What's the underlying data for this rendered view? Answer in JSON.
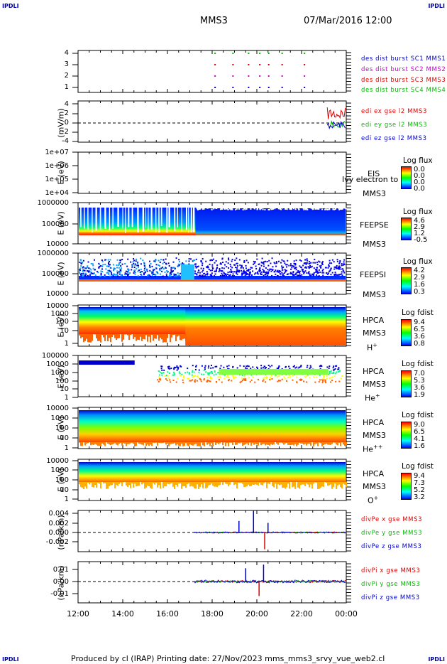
{
  "corners": {
    "tl": "IPDLI",
    "tr": "IPDLI",
    "bl": "IPDLI",
    "br": "IPDLI"
  },
  "header": {
    "mission": "MMS3",
    "datetime": "07/Mar/2016 12:00"
  },
  "footer": {
    "text": "Produced by cl (IRAP)   Printing date: 27/Nov/2023   mms_mms3_srvy_vue_web2.cl"
  },
  "colors": {
    "mms1": "#0000cc",
    "mms2": "#cc00cc",
    "mms3": "#dd0000",
    "mms4": "#00bb00",
    "x": "#dd0000",
    "y": "#00bb00",
    "z": "#0000cc"
  },
  "chart_data": [
    {
      "type": "scatter",
      "panel": "burst",
      "ylim": [
        0.5,
        4.5
      ],
      "yticks": [
        "4",
        "3",
        "2",
        "1"
      ],
      "legend": [
        "des dist burst SC1 MMS1",
        "des dist burst SC2 MMS2",
        "des dist burst SC3 MMS3",
        "des dist burst SC4 MMS4"
      ],
      "x_hours": [
        18.1,
        18.9,
        19.6,
        20.1,
        20.5,
        21.1,
        22.1
      ],
      "series": [
        {
          "name": "des dist burst SC4 MMS4",
          "y": 4
        },
        {
          "name": "des dist burst SC3 MMS3",
          "y": 3
        },
        {
          "name": "des dist burst SC2 MMS2",
          "y": 2
        },
        {
          "name": "des dist burst SC1 MMS1",
          "y": 1
        }
      ]
    },
    {
      "type": "line",
      "panel": "edi",
      "ylabel": "(mV/m)",
      "ylim": [
        -4,
        4
      ],
      "yticks": [
        "4",
        "2",
        "0",
        "-2",
        "-4"
      ],
      "legend": [
        "edi ex gse l2 MMS3",
        "edi ey gse l2 MMS3",
        "edi ez gse l2 MMS3"
      ],
      "x_range_hours": [
        23.15,
        24.0
      ]
    },
    {
      "type": "heatmap",
      "panel": "EIS",
      "ylabel": "E (eV)",
      "yticks": [
        "1e+07",
        "1e+06",
        "1e+05",
        "1e+04"
      ],
      "labels": [
        "EIS",
        "MMS3"
      ],
      "overlay": "Ivy electron to",
      "cbar_title": "Log flux",
      "cbar": [
        "0.0",
        "0.0",
        "0.0",
        "0.0"
      ]
    },
    {
      "type": "heatmap",
      "panel": "FEEPSE",
      "ylabel": "E (eV)",
      "yticks": [
        "1000000",
        "100000",
        "10000"
      ],
      "labels": [
        "FEEPSE",
        "MMS3"
      ],
      "cbar_title": "Log flux",
      "cbar": [
        "4.6",
        "2.9",
        "1.2",
        "-0.5"
      ]
    },
    {
      "type": "heatmap",
      "panel": "FEEPSI",
      "ylabel": "E (eV)",
      "yticks": [
        "1000000",
        "100000",
        "10000"
      ],
      "labels": [
        "FEEPSI",
        "MMS3"
      ],
      "cbar_title": "Log flux",
      "cbar": [
        "4.2",
        "2.9",
        "1.6",
        "0.3"
      ]
    },
    {
      "type": "heatmap",
      "panel": "HPCA H+",
      "ylabel": "E (eV)",
      "yticks": [
        "10000",
        "1000",
        "100",
        "10",
        "1"
      ],
      "labels": [
        "HPCA",
        "MMS3"
      ],
      "ion": "H",
      "ion_sup": "+",
      "cbar_title": "Log fdist",
      "cbar": [
        "9.4",
        "6.5",
        "3.6",
        "0.8"
      ]
    },
    {
      "type": "heatmap",
      "panel": "HPCA He+",
      "ylabel": "E (eV)",
      "yticks": [
        "100000",
        "10000",
        "1000",
        "100",
        "10",
        "1"
      ],
      "labels": [
        "HPCA",
        "MMS3"
      ],
      "ion": "He",
      "ion_sup": "+",
      "cbar_title": "Log fdist",
      "cbar": [
        "7.0",
        "5.3",
        "3.6",
        "1.9"
      ]
    },
    {
      "type": "heatmap",
      "panel": "HPCA He++",
      "ylabel": "E (eV)",
      "yticks": [
        "10000",
        "1000",
        "100",
        "10",
        "1"
      ],
      "labels": [
        "HPCA",
        "MMS3"
      ],
      "ion": "He",
      "ion_sup": "++",
      "cbar_title": "Log fdist",
      "cbar": [
        "9.0",
        "6.5",
        "4.1",
        "1.6"
      ]
    },
    {
      "type": "heatmap",
      "panel": "HPCA O+",
      "ylabel": "E (eV)",
      "yticks": [
        "10000",
        "1000",
        "100",
        "10",
        "1"
      ],
      "labels": [
        "HPCA",
        "MMS3"
      ],
      "ion": "O",
      "ion_sup": "+",
      "cbar_title": "Log fdist",
      "cbar": [
        "9.4",
        "7.3",
        "5.2",
        "3.2"
      ]
    },
    {
      "type": "line",
      "panel": "divPe",
      "ylabel": "(nPa/km)",
      "ylim": [
        -0.004,
        0.005
      ],
      "yticks": [
        "0.004",
        "0.002",
        "0.000",
        "-0.002"
      ],
      "legend": [
        "divPe x gse MMS3",
        "divPe y gse MMS3",
        "divPe z gse MMS3"
      ],
      "x_range_hours": [
        17.2,
        24.0
      ],
      "spikes": [
        {
          "x": 19.2,
          "y": 0.0024,
          "series": "z"
        },
        {
          "x": 19.85,
          "y": 0.0045,
          "series": "z"
        },
        {
          "x": 20.35,
          "y": -0.0035,
          "series": "x"
        },
        {
          "x": 20.5,
          "y": 0.002,
          "series": "z"
        }
      ]
    },
    {
      "type": "line",
      "panel": "divPi",
      "ylabel": "(nPa/km)",
      "ylim": [
        -0.015,
        0.015
      ],
      "yticks": [
        "0.01",
        "0.00",
        "-0.01"
      ],
      "legend": [
        "divPi x gse MMS3",
        "divPi y gse MMS3",
        "divPi z gse MMS3"
      ],
      "x_range_hours": [
        17.2,
        24.0
      ],
      "spikes": [
        {
          "x": 19.5,
          "y": 0.011,
          "series": "z"
        },
        {
          "x": 20.1,
          "y": -0.012,
          "series": "x"
        },
        {
          "x": 20.3,
          "y": 0.014,
          "series": "z"
        }
      ]
    }
  ],
  "xaxis": {
    "ticks": [
      "12:00",
      "14:00",
      "16:00",
      "18:00",
      "20:00",
      "22:00",
      "00:00"
    ],
    "range_hours": [
      12,
      24
    ]
  }
}
